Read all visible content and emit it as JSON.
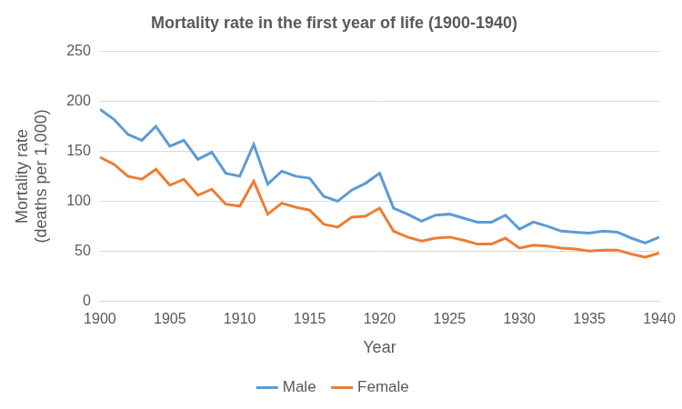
{
  "chart_data": {
    "type": "line",
    "title": "Mortality rate in the first year of life (1900-1940)",
    "x_label": "Year",
    "y_label": [
      "Mortality rate",
      "(deaths per 1,000)"
    ],
    "x": [
      1900,
      1901,
      1902,
      1903,
      1904,
      1905,
      1906,
      1907,
      1908,
      1909,
      1910,
      1911,
      1912,
      1913,
      1914,
      1915,
      1916,
      1917,
      1918,
      1919,
      1920,
      1921,
      1922,
      1923,
      1924,
      1925,
      1926,
      1927,
      1928,
      1929,
      1930,
      1931,
      1932,
      1933,
      1934,
      1935,
      1936,
      1937,
      1938,
      1939,
      1940
    ],
    "series": [
      {
        "name": "Male",
        "color": "#5b9bd5",
        "values": [
          192,
          182,
          167,
          161,
          175,
          155,
          161,
          142,
          149,
          128,
          125,
          157,
          117,
          130,
          125,
          123,
          105,
          100,
          111,
          118,
          128,
          93,
          87,
          80,
          86,
          87,
          83,
          79,
          79,
          86,
          72,
          79,
          75,
          70,
          69,
          68,
          70,
          69,
          63,
          58,
          64
        ]
      },
      {
        "name": "Female",
        "color": "#ed7d31",
        "values": [
          144,
          137,
          125,
          122,
          132,
          116,
          122,
          106,
          112,
          97,
          95,
          120,
          87,
          98,
          94,
          91,
          77,
          74,
          84,
          85,
          93,
          70,
          64,
          60,
          63,
          64,
          61,
          57,
          57,
          63,
          53,
          56,
          55,
          53,
          52,
          50,
          51,
          51,
          47,
          44,
          48
        ]
      }
    ],
    "xlim": [
      1900,
      1940
    ],
    "xticks": [
      1900,
      1905,
      1910,
      1915,
      1920,
      1925,
      1930,
      1935,
      1940
    ],
    "ylim": [
      0,
      250
    ],
    "yticks": [
      0,
      50,
      100,
      150,
      200,
      250
    ],
    "grid": true,
    "legend": "bottom"
  }
}
